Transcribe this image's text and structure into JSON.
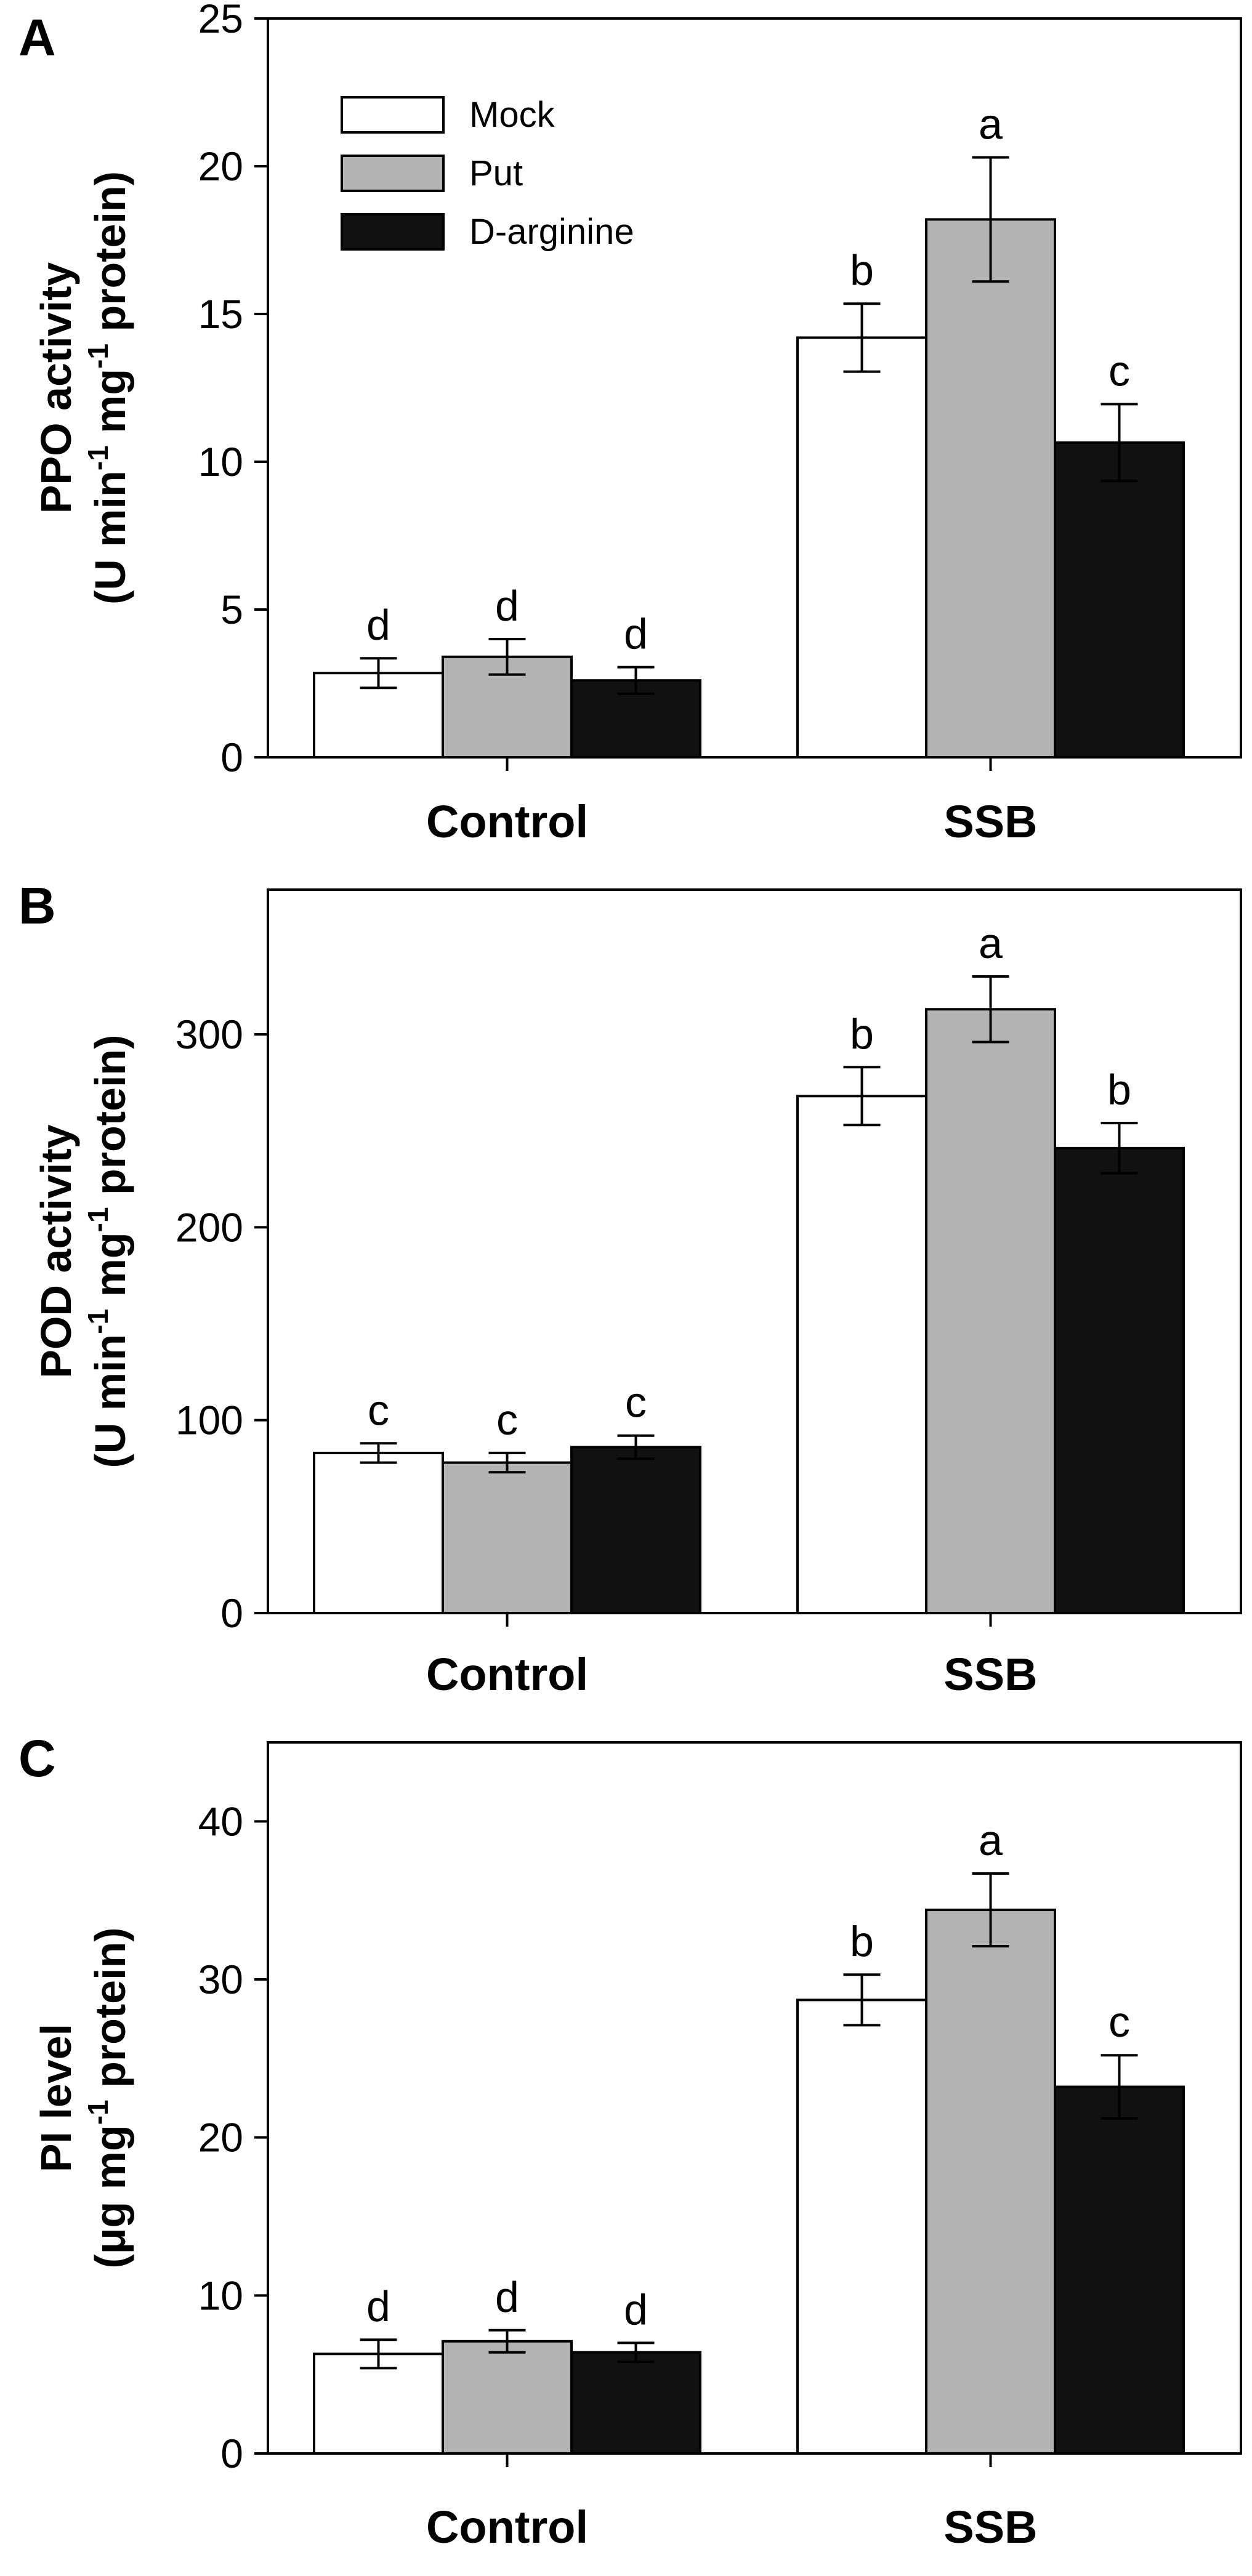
{
  "colors": {
    "Mock": "#ffffff",
    "Put": "#b3b3b3",
    "D-arginine": "#111111",
    "axis": "#000000"
  },
  "chart_data": [
    {
      "type": "bar",
      "panel_label": "A",
      "title": "",
      "ylabel_line1": "PPO activity",
      "ylabel_line2": "(U min",
      "ylabel_sup1": "-1",
      "ylabel_mid": " mg",
      "ylabel_sup2": "-1",
      "ylabel_tail": " protein)",
      "xlabel": "",
      "ylim": [
        0,
        25
      ],
      "yticks": [
        0,
        5,
        10,
        15,
        20,
        25
      ],
      "categories": [
        "Control",
        "SSB"
      ],
      "legend": {
        "position": "top-left",
        "entries": [
          "Mock",
          "Put",
          "D-arginine"
        ]
      },
      "series": [
        {
          "name": "Mock",
          "values": [
            2.85,
            14.2
          ],
          "errors": [
            0.5,
            1.15
          ],
          "letters": [
            "d",
            "b"
          ]
        },
        {
          "name": "Put",
          "values": [
            3.4,
            18.2
          ],
          "errors": [
            0.6,
            2.1
          ],
          "letters": [
            "d",
            "a"
          ]
        },
        {
          "name": "D-arginine",
          "values": [
            2.6,
            10.65
          ],
          "errors": [
            0.45,
            1.3
          ],
          "letters": [
            "d",
            "c"
          ]
        }
      ]
    },
    {
      "type": "bar",
      "panel_label": "B",
      "title": "",
      "ylabel_line1": "POD activity",
      "ylabel_line2": "(U min",
      "ylabel_sup1": "-1",
      "ylabel_mid": " mg",
      "ylabel_sup2": "-1",
      "ylabel_tail": " protein)",
      "xlabel": "",
      "ylim": [
        0,
        375
      ],
      "yticks": [
        0,
        100,
        200,
        300
      ],
      "categories": [
        "Control",
        "SSB"
      ],
      "legend": null,
      "series": [
        {
          "name": "Mock",
          "values": [
            83,
            268
          ],
          "errors": [
            5,
            15
          ],
          "letters": [
            "c",
            "b"
          ]
        },
        {
          "name": "Put",
          "values": [
            78,
            313
          ],
          "errors": [
            5,
            17
          ],
          "letters": [
            "c",
            "a"
          ]
        },
        {
          "name": "D-arginine",
          "values": [
            86,
            241
          ],
          "errors": [
            6,
            13
          ],
          "letters": [
            "c",
            "b"
          ]
        }
      ]
    },
    {
      "type": "bar",
      "panel_label": "C",
      "title": "",
      "ylabel_line1": "PI  level",
      "ylabel_line2": "(μg mg",
      "ylabel_sup1": "-1",
      "ylabel_mid": " protein)",
      "ylabel_sup2": "",
      "ylabel_tail": "",
      "xlabel": "",
      "ylim": [
        0,
        45
      ],
      "yticks": [
        0,
        10,
        20,
        30,
        40
      ],
      "categories": [
        "Control",
        "SSB"
      ],
      "legend": null,
      "series": [
        {
          "name": "Mock",
          "values": [
            6.3,
            28.7
          ],
          "errors": [
            0.9,
            1.6
          ],
          "letters": [
            "d",
            "b"
          ]
        },
        {
          "name": "Put",
          "values": [
            7.1,
            34.4
          ],
          "errors": [
            0.7,
            2.3
          ],
          "letters": [
            "d",
            "a"
          ]
        },
        {
          "name": "D-arginine",
          "values": [
            6.4,
            23.2
          ],
          "errors": [
            0.6,
            2.0
          ],
          "letters": [
            "d",
            "c"
          ]
        }
      ]
    }
  ]
}
